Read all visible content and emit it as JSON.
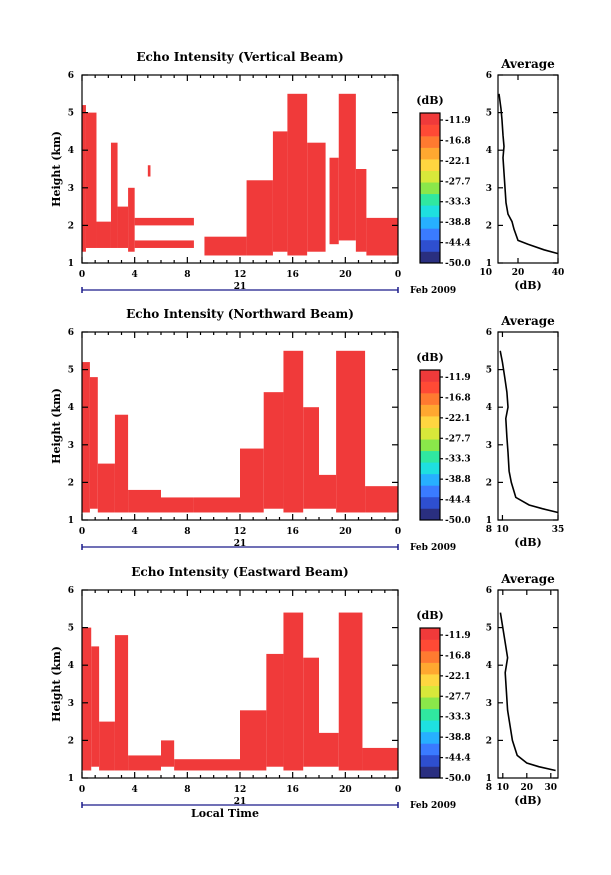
{
  "colorbar": {
    "unit": "(dB)",
    "tick_labels": [
      "-11.9",
      "-16.8",
      "-22.1",
      "-27.7",
      "-33.3",
      "-38.8",
      "-44.4",
      "-50.0"
    ],
    "colors": [
      "#2a2f80",
      "#2e4fd0",
      "#3a7bff",
      "#27b0ff",
      "#1ee0e0",
      "#30e8a0",
      "#8ae84a",
      "#d8e83a",
      "#ffd640",
      "#ffa830",
      "#ff7a30",
      "#ff4a35",
      "#f03a3a"
    ]
  },
  "shared": {
    "x_ticks": [
      "0",
      "4",
      "8",
      "12",
      "16",
      "20",
      "0"
    ],
    "date_day": "21",
    "date_label": "Feb 2009",
    "xlabel": "Local Time",
    "ylabel": "Height (km)",
    "y_ticks": [
      "1",
      "2",
      "3",
      "4",
      "5",
      "6"
    ],
    "avg_title": "Average",
    "avg_xlabel": "(dB)"
  },
  "chart_data": [
    {
      "type": "heatmap",
      "title": "Echo Intensity (Vertical Beam)",
      "ylabel": "Height (km)",
      "xlim": [
        0,
        24
      ],
      "ylim": [
        1,
        6
      ],
      "color": "#f03a3a",
      "columns": [
        {
          "x0": 0,
          "x1": 0.3,
          "y": [
            [
              1.3,
              5.2
            ]
          ]
        },
        {
          "x0": 0.3,
          "x1": 1.1,
          "y": [
            [
              1.4,
              5.0
            ]
          ]
        },
        {
          "x0": 1.1,
          "x1": 2.2,
          "y": [
            [
              1.4,
              2.1
            ]
          ]
        },
        {
          "x0": 2.2,
          "x1": 2.7,
          "y": [
            [
              1.4,
              4.2
            ]
          ]
        },
        {
          "x0": 2.7,
          "x1": 3.5,
          "y": [
            [
              1.4,
              2.5
            ]
          ]
        },
        {
          "x0": 3.5,
          "x1": 4.0,
          "y": [
            [
              1.3,
              3.0
            ]
          ]
        },
        {
          "x0": 4.0,
          "x1": 6.0,
          "y": [
            [
              1.4,
              1.6
            ],
            [
              2.0,
              2.2
            ]
          ]
        },
        {
          "x0": 5.0,
          "x1": 5.2,
          "y": [
            [
              3.3,
              3.6
            ]
          ]
        },
        {
          "x0": 6.0,
          "x1": 8.5,
          "y": [
            [
              1.4,
              1.6
            ],
            [
              2.0,
              2.2
            ]
          ]
        },
        {
          "x0": 9.3,
          "x1": 12.5,
          "y": [
            [
              1.2,
              1.7
            ]
          ]
        },
        {
          "x0": 12.5,
          "x1": 14.5,
          "y": [
            [
              1.2,
              3.2
            ]
          ]
        },
        {
          "x0": 14.5,
          "x1": 15.6,
          "y": [
            [
              1.3,
              4.5
            ]
          ]
        },
        {
          "x0": 15.6,
          "x1": 17.1,
          "y": [
            [
              1.2,
              5.5
            ]
          ]
        },
        {
          "x0": 17.1,
          "x1": 18.5,
          "y": [
            [
              1.3,
              4.2
            ]
          ]
        },
        {
          "x0": 18.8,
          "x1": 19.5,
          "y": [
            [
              1.5,
              3.8
            ]
          ]
        },
        {
          "x0": 19.5,
          "x1": 20.8,
          "y": [
            [
              1.6,
              5.5
            ]
          ]
        },
        {
          "x0": 20.8,
          "x1": 21.6,
          "y": [
            [
              1.3,
              3.5
            ]
          ]
        },
        {
          "x0": 21.6,
          "x1": 24.0,
          "y": [
            [
              1.2,
              2.2
            ]
          ]
        }
      ],
      "average": {
        "xlim": [
          10,
          40
        ],
        "x_ticks": [
          "20",
          "40"
        ],
        "xlabel": "(dB)",
        "ylim": [
          1,
          6
        ],
        "profile": [
          [
            40,
            1.25
          ],
          [
            33,
            1.35
          ],
          [
            25,
            1.5
          ],
          [
            20,
            1.6
          ],
          [
            18,
            1.9
          ],
          [
            17,
            2.1
          ],
          [
            15,
            2.3
          ],
          [
            14,
            2.6
          ],
          [
            13.5,
            3.0
          ],
          [
            13,
            3.4
          ],
          [
            12.5,
            3.8
          ],
          [
            13,
            4.1
          ],
          [
            12.5,
            4.4
          ],
          [
            12,
            4.8
          ],
          [
            11.5,
            5.1
          ],
          [
            10.5,
            5.5
          ]
        ]
      }
    },
    {
      "type": "heatmap",
      "title": "Echo Intensity (Northward Beam)",
      "ylabel": "Height (km)",
      "xlim": [
        0,
        24
      ],
      "ylim": [
        1,
        6
      ],
      "color": "#f03a3a",
      "columns": [
        {
          "x0": 0,
          "x1": 0.6,
          "y": [
            [
              1.2,
              5.2
            ]
          ]
        },
        {
          "x0": 0.6,
          "x1": 1.2,
          "y": [
            [
              1.3,
              4.8
            ]
          ]
        },
        {
          "x0": 1.2,
          "x1": 2.5,
          "y": [
            [
              1.2,
              2.5
            ]
          ]
        },
        {
          "x0": 2.5,
          "x1": 3.5,
          "y": [
            [
              1.2,
              3.8
            ]
          ]
        },
        {
          "x0": 3.5,
          "x1": 6.0,
          "y": [
            [
              1.2,
              1.8
            ]
          ]
        },
        {
          "x0": 6.0,
          "x1": 8.5,
          "y": [
            [
              1.2,
              1.6
            ]
          ]
        },
        {
          "x0": 8.5,
          "x1": 12.0,
          "y": [
            [
              1.2,
              1.6
            ]
          ]
        },
        {
          "x0": 12.0,
          "x1": 13.8,
          "y": [
            [
              1.2,
              2.9
            ]
          ]
        },
        {
          "x0": 13.8,
          "x1": 15.3,
          "y": [
            [
              1.3,
              4.4
            ]
          ]
        },
        {
          "x0": 15.3,
          "x1": 16.8,
          "y": [
            [
              1.2,
              5.5
            ]
          ]
        },
        {
          "x0": 16.8,
          "x1": 18.0,
          "y": [
            [
              1.3,
              4.0
            ]
          ]
        },
        {
          "x0": 18.0,
          "x1": 19.3,
          "y": [
            [
              1.3,
              2.2
            ]
          ]
        },
        {
          "x0": 19.3,
          "x1": 21.5,
          "y": [
            [
              1.2,
              5.5
            ]
          ]
        },
        {
          "x0": 21.5,
          "x1": 24.0,
          "y": [
            [
              1.2,
              1.9
            ]
          ]
        }
      ],
      "average": {
        "xlim": [
          8,
          35
        ],
        "x_ticks": [
          "10",
          "35"
        ],
        "xlabel": "(dB)",
        "ylim": [
          1,
          6
        ],
        "profile": [
          [
            35,
            1.2
          ],
          [
            28,
            1.3
          ],
          [
            22,
            1.4
          ],
          [
            16,
            1.6
          ],
          [
            14,
            2.0
          ],
          [
            13,
            2.3
          ],
          [
            12.5,
            2.8
          ],
          [
            12,
            3.2
          ],
          [
            11.5,
            3.7
          ],
          [
            12.5,
            4.0
          ],
          [
            12,
            4.4
          ],
          [
            11,
            4.8
          ],
          [
            10,
            5.2
          ],
          [
            9,
            5.5
          ]
        ]
      }
    },
    {
      "type": "heatmap",
      "title": "Echo Intensity (Eastward Beam)",
      "ylabel": "Height (km)",
      "xlim": [
        0,
        24
      ],
      "ylim": [
        1,
        6
      ],
      "color": "#f03a3a",
      "columns": [
        {
          "x0": 0,
          "x1": 0.7,
          "y": [
            [
              1.2,
              5.0
            ]
          ]
        },
        {
          "x0": 0.7,
          "x1": 1.3,
          "y": [
            [
              1.3,
              4.5
            ]
          ]
        },
        {
          "x0": 1.3,
          "x1": 2.5,
          "y": [
            [
              1.2,
              2.5
            ]
          ]
        },
        {
          "x0": 2.5,
          "x1": 3.5,
          "y": [
            [
              1.2,
              4.8
            ]
          ]
        },
        {
          "x0": 3.5,
          "x1": 6.0,
          "y": [
            [
              1.2,
              1.6
            ]
          ]
        },
        {
          "x0": 6.0,
          "x1": 7.0,
          "y": [
            [
              1.3,
              2.0
            ]
          ]
        },
        {
          "x0": 7.0,
          "x1": 12.0,
          "y": [
            [
              1.2,
              1.5
            ]
          ]
        },
        {
          "x0": 12.0,
          "x1": 14.0,
          "y": [
            [
              1.2,
              2.8
            ]
          ]
        },
        {
          "x0": 14.0,
          "x1": 15.3,
          "y": [
            [
              1.3,
              4.3
            ]
          ]
        },
        {
          "x0": 15.3,
          "x1": 16.8,
          "y": [
            [
              1.2,
              5.4
            ]
          ]
        },
        {
          "x0": 16.8,
          "x1": 18.0,
          "y": [
            [
              1.3,
              4.2
            ]
          ]
        },
        {
          "x0": 18.0,
          "x1": 19.5,
          "y": [
            [
              1.3,
              2.2
            ]
          ]
        },
        {
          "x0": 19.5,
          "x1": 21.3,
          "y": [
            [
              1.2,
              5.4
            ]
          ]
        },
        {
          "x0": 21.3,
          "x1": 24.0,
          "y": [
            [
              1.2,
              1.8
            ]
          ]
        }
      ],
      "average": {
        "xlim": [
          8,
          33
        ],
        "x_ticks": [
          "10",
          "20",
          "30"
        ],
        "xlabel": "(dB)",
        "ylim": [
          1,
          6
        ],
        "profile": [
          [
            32,
            1.2
          ],
          [
            25,
            1.3
          ],
          [
            20,
            1.4
          ],
          [
            16,
            1.6
          ],
          [
            14,
            2.0
          ],
          [
            13,
            2.4
          ],
          [
            12,
            2.8
          ],
          [
            11.5,
            3.3
          ],
          [
            11,
            3.8
          ],
          [
            12,
            4.2
          ],
          [
            11,
            4.6
          ],
          [
            10,
            5.0
          ],
          [
            9,
            5.4
          ]
        ]
      }
    }
  ]
}
